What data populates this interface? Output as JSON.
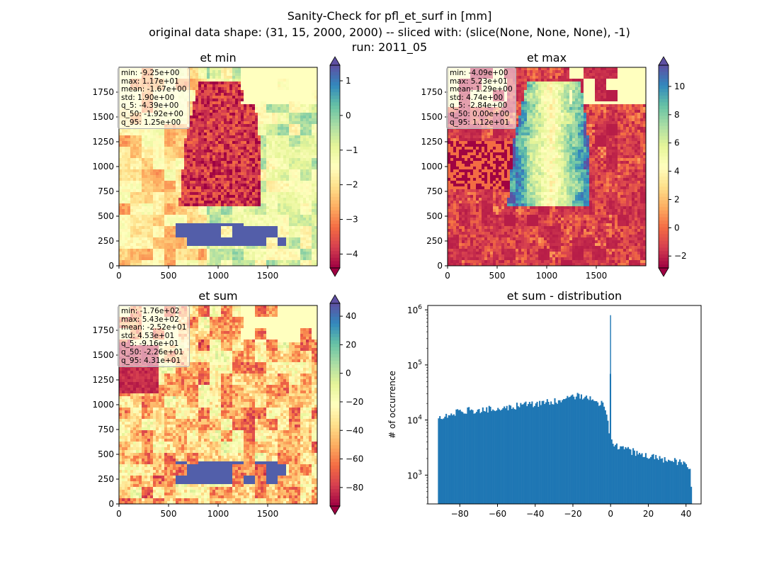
{
  "figure": {
    "title_lines": [
      "Sanity-Check for pfl_et_surf in [mm]",
      "original data shape: (31, 15, 2000, 2000) -- sliced with: (slice(None, None, None), -1)",
      "run: 2011_05"
    ]
  },
  "chart_data": [
    {
      "type": "heatmap",
      "title": "et min",
      "x_ticks": [
        0,
        500,
        1000,
        1500
      ],
      "y_ticks": [
        0,
        250,
        500,
        750,
        1000,
        1250,
        1500,
        1750
      ],
      "xlim": [
        0,
        2000
      ],
      "ylim": [
        0,
        2000
      ],
      "colormap": "Spectral",
      "color_range": [
        -4.4,
        1.45
      ],
      "colorbar_ticks": [
        1,
        0,
        -1,
        -2,
        -3,
        -4
      ],
      "colorbar_tick_labels": [
        "1",
        "0",
        "−1",
        "−2",
        "−3",
        "−4"
      ],
      "colorbar_extend": "both",
      "stats": [
        "min: -9.25e+00",
        "max: 1.17e+01",
        "mean: -1.67e+00",
        "std: 1.90e+00",
        "q_5: -4.39e+00",
        "q_50: -1.92e+00",
        "q_95: 1.25e+00"
      ]
    },
    {
      "type": "heatmap",
      "title": "et max",
      "x_ticks": [
        0,
        500,
        1000,
        1500
      ],
      "y_ticks": [
        0,
        250,
        500,
        750,
        1000,
        1250,
        1500,
        1750
      ],
      "xlim": [
        0,
        2000
      ],
      "ylim": [
        0,
        2000
      ],
      "colormap": "Spectral",
      "color_range": [
        -2.84,
        11.5
      ],
      "colorbar_ticks": [
        10,
        8,
        6,
        4,
        2,
        0,
        -2
      ],
      "colorbar_tick_labels": [
        "10",
        "8",
        "6",
        "4",
        "2",
        "0",
        "−2"
      ],
      "colorbar_extend": "both",
      "stats": [
        "min: -4.09e+00",
        "max: 5.23e+01",
        "mean: 1.29e+00",
        "std: 4.74e+00",
        "q_5: -2.84e+00",
        "q_50: 0.00e+00",
        "q_95: 1.12e+01"
      ]
    },
    {
      "type": "heatmap",
      "title": "et sum",
      "x_ticks": [
        0,
        500,
        1000,
        1500
      ],
      "y_ticks": [
        0,
        250,
        500,
        750,
        1000,
        1250,
        1500,
        1750
      ],
      "xlim": [
        0,
        2000
      ],
      "ylim": [
        0,
        2000
      ],
      "colormap": "Spectral",
      "color_range": [
        -93,
        49
      ],
      "colorbar_ticks": [
        40,
        20,
        0,
        -20,
        -40,
        -60,
        -80
      ],
      "colorbar_tick_labels": [
        "40",
        "20",
        "0",
        "−20",
        "−40",
        "−60",
        "−80"
      ],
      "colorbar_extend": "both",
      "stats": [
        "min: -1.76e+02",
        "max: 5.43e+02",
        "mean: -2.52e+01",
        "std: 4.53e+01",
        "q_5: -9.16e+01",
        "q_50: -2.26e+01",
        "q_95: 4.31e+01"
      ]
    },
    {
      "type": "bar",
      "title": "et sum - distribution",
      "ylabel": "# of occurrence",
      "y_scale": "log",
      "xlim": [
        -97,
        48
      ],
      "ylim": [
        300,
        1200000
      ],
      "x_ticks": [
        -80,
        -60,
        -40,
        -20,
        0,
        20,
        40
      ],
      "x_tick_labels": [
        "−80",
        "−60",
        "−40",
        "−20",
        "0",
        "20",
        "40"
      ],
      "y_ticks": [
        1000,
        10000,
        100000,
        1000000
      ],
      "y_tick_labels": [
        "10³",
        "10⁴",
        "10⁵",
        "10⁶"
      ],
      "bar_color": "#1f77b4",
      "histogram_profile": {
        "x": [
          -91.6,
          -91,
          -88,
          -85,
          -80,
          -75,
          -70,
          -65,
          -60,
          -55,
          -50,
          -45,
          -40,
          -35,
          -30,
          -25,
          -22,
          -20,
          -15,
          -10,
          -7,
          -5,
          -3,
          -1.5,
          -0.3,
          0,
          0.4,
          1.5,
          3,
          5,
          8,
          10,
          15,
          20,
          25,
          30,
          35,
          38,
          40,
          42,
          43.1
        ],
        "y": [
          9500,
          11000,
          12500,
          13000,
          14000,
          15000,
          15500,
          16000,
          16500,
          17000,
          18000,
          19000,
          20000,
          21000,
          22000,
          24000,
          29000,
          28000,
          27000,
          24000,
          22000,
          20000,
          16000,
          9000,
          5000,
          800000,
          4500,
          4000,
          3500,
          3300,
          3000,
          2800,
          2500,
          2300,
          2100,
          1900,
          1800,
          1600,
          1500,
          1200,
          450
        ]
      }
    }
  ]
}
